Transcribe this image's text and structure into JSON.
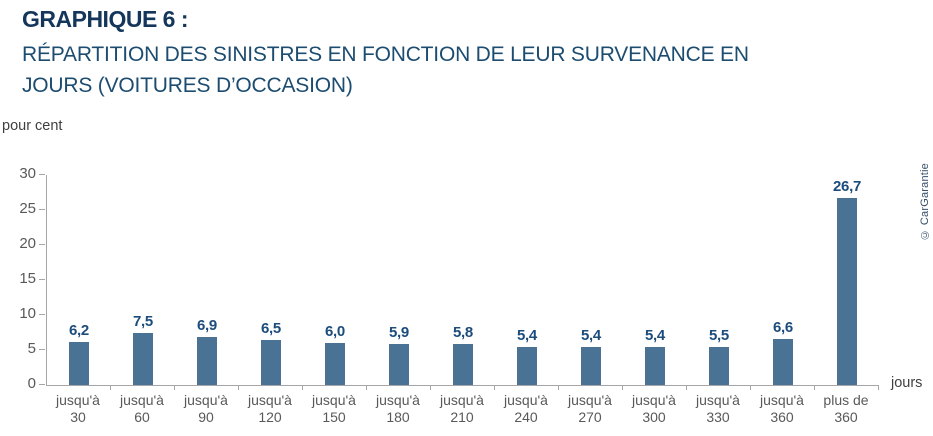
{
  "header": {
    "title": "GRAPHIQUE 6 :",
    "subtitle": "RÉPARTITION DES SINISTRES EN FONCTION DE LEUR SURVENANCE EN\nJOURS (VOITURES D’OCCASION)"
  },
  "chart_data": {
    "type": "bar",
    "unit_label": "pour cent",
    "x_axis_label": "jours",
    "categories": [
      "jusqu'à\n30",
      "jusqu'à\n60",
      "jusqu'à\n90",
      "jusqu'à\n120",
      "jusqu'à\n150",
      "jusqu'à\n180",
      "jusqu'à\n210",
      "jusqu'à\n240",
      "jusqu'à\n270",
      "jusqu'à\n300",
      "jusqu'à\n330",
      "jusqu'à\n360",
      "plus de\n360"
    ],
    "values": [
      6.2,
      7.5,
      6.9,
      6.5,
      6.0,
      5.9,
      5.8,
      5.4,
      5.4,
      5.4,
      5.5,
      6.6,
      26.7
    ],
    "value_labels": [
      "6,2",
      "7,5",
      "6,9",
      "6,5",
      "6,0",
      "5,9",
      "5,8",
      "5,4",
      "5,4",
      "5,4",
      "5,5",
      "6,6",
      "26,7"
    ],
    "ylim": [
      0,
      30
    ],
    "yticks": [
      0,
      5,
      10,
      15,
      20,
      25,
      30
    ],
    "grid": false,
    "legend": null,
    "bar_color": "#497294",
    "value_label_color": "#1C4C7C",
    "axis_color": "#A6A6A6",
    "tick_label_color": "#595959"
  },
  "credit": "© CarGarantie"
}
